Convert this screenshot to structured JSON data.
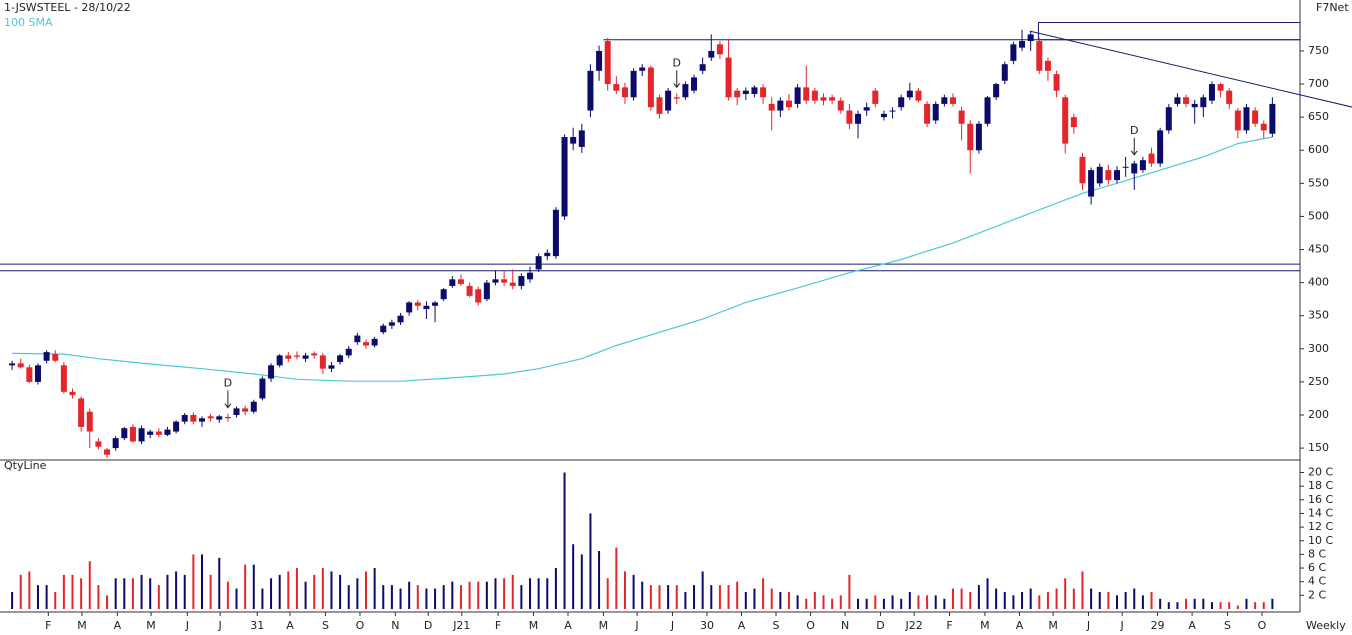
{
  "chart_data": {
    "type": "candlestick",
    "title": "1-JSWSTEEL - 28/10/22",
    "source": "F7Net",
    "volume_title": "QtyLine",
    "period": "Weekly",
    "up_color": "#0b0b6b",
    "down_color": "#e3262b",
    "xlim": [
      -1.4,
      149.2
    ],
    "ylim": [
      132,
      827
    ],
    "yticks": [
      150,
      200,
      250,
      300,
      350,
      400,
      450,
      500,
      550,
      600,
      650,
      700,
      750
    ],
    "xticks": [
      {
        "value": 4.2,
        "label": "F"
      },
      {
        "value": 8.1,
        "label": "M"
      },
      {
        "value": 12.2,
        "label": "A"
      },
      {
        "value": 16.1,
        "label": "M"
      },
      {
        "value": 20.3,
        "label": "J"
      },
      {
        "value": 24.1,
        "label": "J"
      },
      {
        "value": 28.4,
        "label": "31"
      },
      {
        "value": 32.2,
        "label": "A"
      },
      {
        "value": 36.3,
        "label": "S"
      },
      {
        "value": 40.3,
        "label": "O"
      },
      {
        "value": 44.4,
        "label": "N"
      },
      {
        "value": 48.2,
        "label": "D"
      },
      {
        "value": 52.1,
        "label": "J21"
      },
      {
        "value": 56.3,
        "label": "F"
      },
      {
        "value": 60.4,
        "label": "M"
      },
      {
        "value": 64.4,
        "label": "A"
      },
      {
        "value": 68.5,
        "label": "M"
      },
      {
        "value": 72.4,
        "label": "J"
      },
      {
        "value": 76.5,
        "label": "J"
      },
      {
        "value": 80.5,
        "label": "30"
      },
      {
        "value": 84.5,
        "label": "A"
      },
      {
        "value": 88.5,
        "label": "S"
      },
      {
        "value": 92.5,
        "label": "O"
      },
      {
        "value": 96.5,
        "label": "N"
      },
      {
        "value": 100.6,
        "label": "D"
      },
      {
        "value": 104.5,
        "label": "J22"
      },
      {
        "value": 108.6,
        "label": "F"
      },
      {
        "value": 112.7,
        "label": "M"
      },
      {
        "value": 116.7,
        "label": "A"
      },
      {
        "value": 120.6,
        "label": "M"
      },
      {
        "value": 124.7,
        "label": "J"
      },
      {
        "value": 128.6,
        "label": "J"
      },
      {
        "value": 132.7,
        "label": "29"
      },
      {
        "value": 136.7,
        "label": "A"
      },
      {
        "value": 140.8,
        "label": "S"
      },
      {
        "value": 144.8,
        "label": "O"
      }
    ],
    "candles": [
      [
        275,
        282,
        268,
        278
      ],
      [
        278,
        285,
        270,
        272
      ],
      [
        272,
        276,
        248,
        250
      ],
      [
        250,
        278,
        246,
        275
      ],
      [
        282,
        298,
        278,
        295
      ],
      [
        292,
        298,
        280,
        282
      ],
      [
        275,
        280,
        232,
        235
      ],
      [
        235,
        240,
        225,
        230
      ],
      [
        225,
        228,
        175,
        182
      ],
      [
        205,
        210,
        150,
        175
      ],
      [
        160,
        165,
        148,
        152
      ],
      [
        148,
        150,
        135,
        140
      ],
      [
        150,
        168,
        146,
        165
      ],
      [
        165,
        182,
        162,
        180
      ],
      [
        182,
        186,
        158,
        160
      ],
      [
        160,
        184,
        156,
        180
      ],
      [
        170,
        178,
        165,
        175
      ],
      [
        175,
        180,
        166,
        170
      ],
      [
        170,
        182,
        168,
        178
      ],
      [
        175,
        192,
        172,
        190
      ],
      [
        190,
        203,
        186,
        200
      ],
      [
        200,
        204,
        186,
        190
      ],
      [
        190,
        198,
        182,
        195
      ],
      [
        198,
        202,
        190,
        195
      ],
      [
        193,
        200,
        188,
        198
      ],
      [
        197,
        202,
        190,
        195
      ],
      [
        200,
        213,
        196,
        210
      ],
      [
        210,
        214,
        200,
        205
      ],
      [
        205,
        223,
        202,
        220
      ],
      [
        225,
        258,
        222,
        255
      ],
      [
        255,
        278,
        250,
        275
      ],
      [
        275,
        292,
        272,
        290
      ],
      [
        290,
        295,
        280,
        285
      ],
      [
        290,
        296,
        284,
        288
      ],
      [
        285,
        294,
        280,
        290
      ],
      [
        293,
        296,
        285,
        290
      ],
      [
        290,
        294,
        262,
        270
      ],
      [
        270,
        280,
        265,
        275
      ],
      [
        280,
        292,
        276,
        290
      ],
      [
        290,
        304,
        286,
        300
      ],
      [
        310,
        324,
        306,
        320
      ],
      [
        310,
        314,
        300,
        305
      ],
      [
        305,
        318,
        302,
        315
      ],
      [
        325,
        338,
        322,
        335
      ],
      [
        335,
        344,
        330,
        340
      ],
      [
        340,
        354,
        336,
        350
      ],
      [
        355,
        372,
        350,
        370
      ],
      [
        370,
        374,
        358,
        365
      ],
      [
        360,
        372,
        345,
        365
      ],
      [
        365,
        372,
        340,
        370
      ],
      [
        375,
        392,
        372,
        390
      ],
      [
        395,
        410,
        392,
        405
      ],
      [
        405,
        412,
        395,
        398
      ],
      [
        395,
        400,
        378,
        380
      ],
      [
        390,
        394,
        365,
        370
      ],
      [
        375,
        404,
        372,
        400
      ],
      [
        400,
        418,
        396,
        405
      ],
      [
        405,
        418,
        395,
        400
      ],
      [
        400,
        420,
        390,
        395
      ],
      [
        395,
        414,
        390,
        410
      ],
      [
        405,
        424,
        400,
        415
      ],
      [
        420,
        444,
        416,
        440
      ],
      [
        440,
        450,
        434,
        445
      ],
      [
        440,
        514,
        436,
        510
      ],
      [
        500,
        624,
        495,
        620
      ],
      [
        610,
        634,
        600,
        620
      ],
      [
        605,
        640,
        596,
        630
      ],
      [
        660,
        730,
        650,
        720
      ],
      [
        720,
        758,
        705,
        750
      ],
      [
        765,
        770,
        690,
        700
      ],
      [
        700,
        712,
        685,
        690
      ],
      [
        695,
        702,
        670,
        680
      ],
      [
        680,
        724,
        675,
        720
      ],
      [
        720,
        730,
        712,
        725
      ],
      [
        725,
        728,
        660,
        665
      ],
      [
        680,
        684,
        648,
        655
      ],
      [
        660,
        694,
        655,
        690
      ],
      [
        680,
        686,
        670,
        678
      ],
      [
        680,
        704,
        676,
        700
      ],
      [
        690,
        714,
        686,
        710
      ],
      [
        720,
        740,
        715,
        730
      ],
      [
        740,
        775,
        735,
        750
      ],
      [
        760,
        765,
        738,
        745
      ],
      [
        740,
        768,
        675,
        680
      ],
      [
        690,
        694,
        668,
        680
      ],
      [
        685,
        695,
        676,
        690
      ],
      [
        685,
        698,
        680,
        695
      ],
      [
        695,
        700,
        670,
        680
      ],
      [
        670,
        680,
        630,
        660
      ],
      [
        660,
        680,
        650,
        675
      ],
      [
        675,
        685,
        660,
        665
      ],
      [
        670,
        700,
        664,
        695
      ],
      [
        695,
        728,
        670,
        675
      ],
      [
        690,
        694,
        670,
        675
      ],
      [
        680,
        686,
        668,
        675
      ],
      [
        680,
        684,
        670,
        675
      ],
      [
        675,
        680,
        655,
        660
      ],
      [
        660,
        670,
        632,
        640
      ],
      [
        640,
        660,
        618,
        655
      ],
      [
        660,
        672,
        652,
        665
      ],
      [
        690,
        694,
        665,
        670
      ],
      [
        650,
        660,
        645,
        655
      ],
      [
        660,
        665,
        648,
        660
      ],
      [
        665,
        684,
        660,
        680
      ],
      [
        680,
        702,
        676,
        690
      ],
      [
        690,
        694,
        672,
        675
      ],
      [
        670,
        674,
        635,
        640
      ],
      [
        645,
        674,
        640,
        670
      ],
      [
        670,
        684,
        666,
        680
      ],
      [
        680,
        686,
        666,
        670
      ],
      [
        660,
        666,
        615,
        640
      ],
      [
        640,
        646,
        565,
        600
      ],
      [
        600,
        644,
        595,
        640
      ],
      [
        640,
        682,
        636,
        680
      ],
      [
        680,
        702,
        676,
        700
      ],
      [
        705,
        734,
        700,
        730
      ],
      [
        735,
        764,
        730,
        760
      ],
      [
        755,
        782,
        750,
        765
      ],
      [
        765,
        780,
        750,
        775
      ],
      [
        765,
        770,
        715,
        720
      ],
      [
        735,
        740,
        705,
        720
      ],
      [
        715,
        720,
        680,
        690
      ],
      [
        680,
        684,
        595,
        610
      ],
      [
        650,
        655,
        625,
        635
      ],
      [
        590,
        596,
        540,
        550
      ],
      [
        530,
        574,
        518,
        570
      ],
      [
        550,
        580,
        545,
        575
      ],
      [
        570,
        578,
        548,
        555
      ],
      [
        555,
        576,
        550,
        570
      ],
      [
        575,
        590,
        560,
        575
      ],
      [
        565,
        584,
        540,
        580
      ],
      [
        570,
        590,
        566,
        585
      ],
      [
        595,
        604,
        575,
        580
      ],
      [
        580,
        634,
        575,
        630
      ],
      [
        630,
        670,
        625,
        665
      ],
      [
        670,
        686,
        666,
        680
      ],
      [
        680,
        684,
        665,
        670
      ],
      [
        665,
        676,
        640,
        670
      ],
      [
        665,
        684,
        650,
        680
      ],
      [
        675,
        704,
        670,
        700
      ],
      [
        700,
        702,
        680,
        690
      ],
      [
        690,
        694,
        662,
        670
      ],
      [
        660,
        664,
        618,
        630
      ],
      [
        630,
        670,
        625,
        665
      ],
      [
        660,
        665,
        635,
        640
      ],
      [
        640,
        645,
        618,
        630
      ],
      [
        625,
        680,
        620,
        670
      ]
    ],
    "sma": {
      "name": "100 SMA",
      "color": "#4cc9d9",
      "x": [
        0,
        6,
        10,
        16,
        22,
        28,
        33,
        39,
        45,
        51,
        57,
        61,
        66,
        70,
        75,
        80,
        85,
        91,
        97,
        103,
        109,
        114,
        119,
        124,
        128,
        133,
        138,
        142,
        146
      ],
      "values": [
        293,
        292,
        285,
        277,
        270,
        262,
        254,
        251,
        251,
        256,
        262,
        270,
        285,
        305,
        325,
        345,
        370,
        392,
        415,
        435,
        460,
        485,
        510,
        535,
        550,
        570,
        590,
        610,
        620
      ]
    },
    "hlines": [
      {
        "y": 428
      },
      {
        "y": 418
      },
      {
        "y": 767,
        "from": 68.5
      }
    ],
    "box": {
      "x": [
        118.9,
        149.2
      ],
      "y": [
        767,
        793
      ]
    },
    "trendline": {
      "x": [
        117.9,
        155.3
      ],
      "y": [
        780,
        665
      ]
    },
    "markers": [
      {
        "candle": 25,
        "label": "D"
      },
      {
        "candle": 77,
        "label": "D"
      },
      {
        "candle": 130,
        "label": "D"
      }
    ],
    "volume": {
      "ylim": [
        0,
        21.1
      ],
      "yticks": [
        {
          "value": 2,
          "label": "2 C"
        },
        {
          "value": 4,
          "label": "4 C"
        },
        {
          "value": 6,
          "label": "6 C"
        },
        {
          "value": 8,
          "label": "8 C"
        },
        {
          "value": 10,
          "label": "10 C"
        },
        {
          "value": 12,
          "label": "12 C"
        },
        {
          "value": 14,
          "label": "14 C"
        },
        {
          "value": 16,
          "label": "16 C"
        },
        {
          "value": 18,
          "label": "18 C"
        },
        {
          "value": 20,
          "label": "20 C"
        }
      ],
      "values": [
        2.5,
        5,
        5.5,
        3.5,
        3.5,
        2.5,
        5,
        5,
        4.5,
        7,
        3.5,
        2,
        4.5,
        4.5,
        4.5,
        5,
        4.5,
        3.5,
        5,
        5.5,
        5,
        8,
        8,
        5,
        7.5,
        4,
        3,
        6.5,
        6.5,
        3,
        4.5,
        5,
        5.5,
        6,
        4,
        5,
        6,
        5.5,
        5,
        3.5,
        4.5,
        5.5,
        6,
        3.5,
        3.5,
        3,
        4,
        3.5,
        3,
        3,
        3.5,
        4,
        3.5,
        4,
        4,
        4,
        4.5,
        4.5,
        5,
        3.5,
        4.5,
        4.5,
        4.5,
        6,
        20,
        9.5,
        8,
        14,
        8.5,
        4.5,
        9,
        5.5,
        5,
        4,
        3.5,
        3.5,
        3.5,
        3.5,
        2.5,
        3.5,
        5.5,
        3.5,
        3.5,
        3.5,
        4,
        2.5,
        3,
        4.5,
        3,
        2.5,
        2.5,
        2,
        1.5,
        2.5,
        2,
        1.5,
        2,
        5,
        1.5,
        1.5,
        2,
        1.5,
        2,
        1.5,
        2.5,
        2,
        2,
        2,
        1.5,
        3,
        3,
        2.5,
        3.5,
        4.5,
        3,
        2.5,
        2,
        2.5,
        3,
        2,
        2.5,
        3,
        4.5,
        3,
        5.5,
        3,
        2.5,
        2.5,
        2,
        2.5,
        3,
        2,
        2.5,
        1.5,
        1,
        1,
        1.5,
        1.5,
        1.5,
        1,
        1,
        1,
        0.5,
        1.5,
        1,
        1,
        1.5
      ]
    }
  }
}
